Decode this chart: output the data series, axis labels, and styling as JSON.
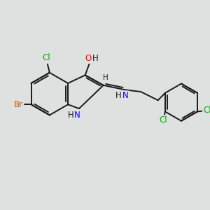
{
  "bg_color": "#dfe0e0",
  "bond_color": "#1a1a1a",
  "bond_width": 1.4,
  "atom_colors": {
    "C": "#1a1a1a",
    "N": "#0000ff",
    "O": "#ff0000",
    "Br": "#cc5500",
    "Cl": "#00aa00",
    "H": "#1a1a1a"
  },
  "font_size": 8.5,
  "figsize": [
    3.0,
    3.0
  ],
  "dpi": 100
}
